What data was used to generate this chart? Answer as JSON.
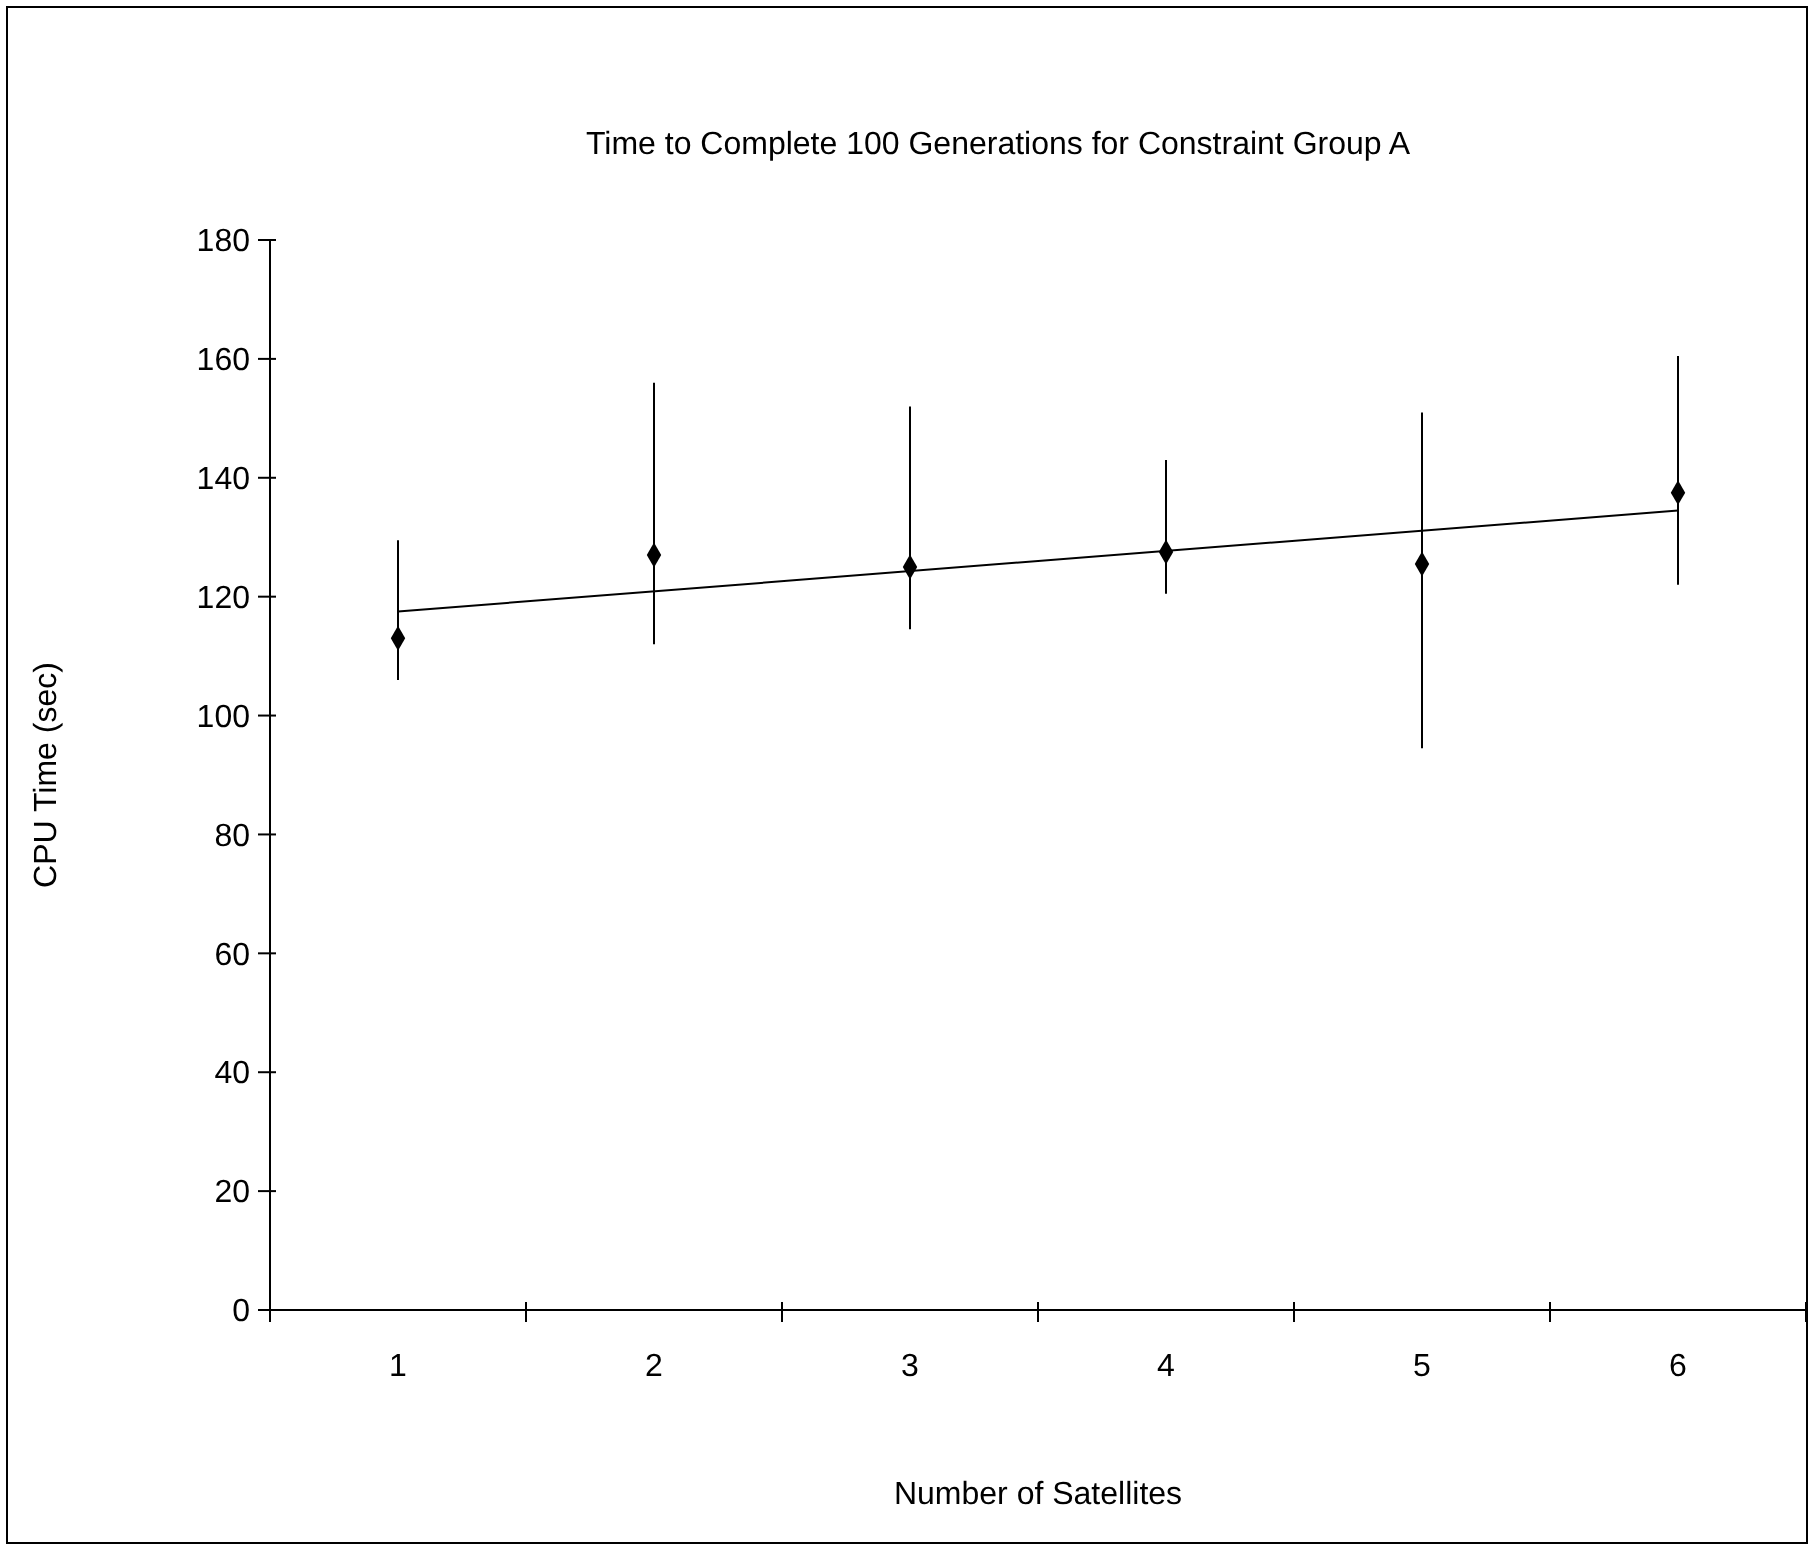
{
  "chart_data": {
    "type": "scatter",
    "title": "Time to Complete 100 Generations for Constraint Group A",
    "xlabel": "Number of Satellites",
    "ylabel": "CPU Time (sec)",
    "categories": [
      "1",
      "2",
      "3",
      "4",
      "5",
      "6"
    ],
    "ylim": [
      0,
      180
    ],
    "yticks": [
      0,
      20,
      40,
      60,
      80,
      100,
      120,
      140,
      160,
      180
    ],
    "marker": "diamond",
    "grid": false,
    "series": [
      {
        "color": "#000000",
        "values": [
          113,
          127,
          125,
          127.5,
          125.5,
          137.5
        ],
        "errors": [
          [
            106,
            129.5
          ],
          [
            112,
            156
          ],
          [
            114.5,
            152
          ],
          [
            120.5,
            143
          ],
          [
            94.5,
            151
          ],
          [
            122,
            160.5
          ]
        ]
      },
      {
        "type": "line",
        "color": "#000000",
        "x": [
          "1",
          "6"
        ],
        "values": [
          117.5,
          134.5
        ],
        "marker": "none",
        "line_style": "solid"
      }
    ]
  }
}
